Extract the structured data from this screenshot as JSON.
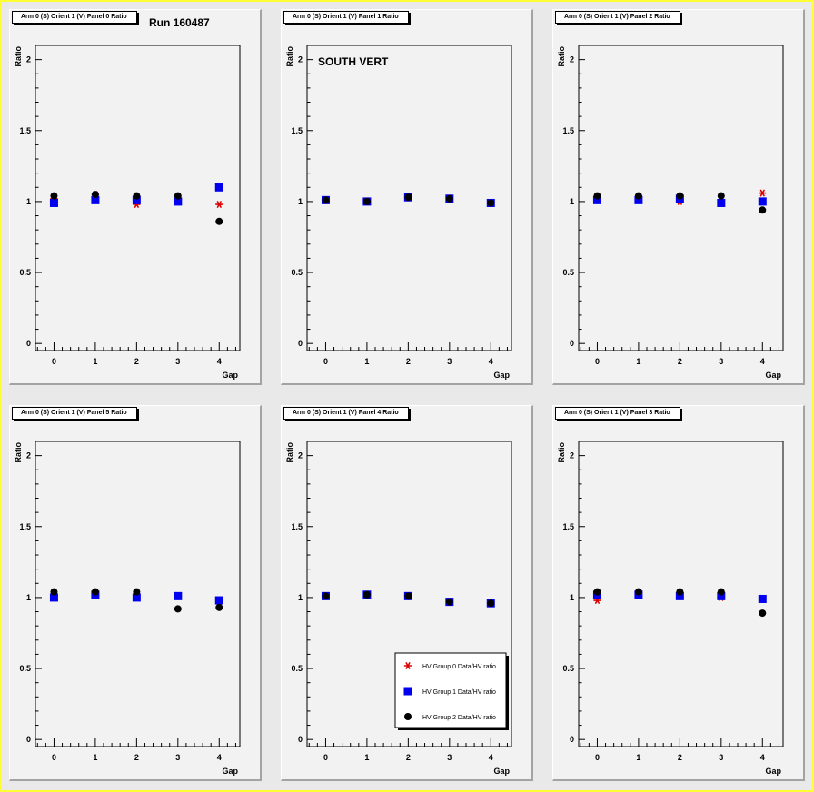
{
  "chart_data": [
    {
      "type": "scatter",
      "title": "Arm 0 (S) Orient 1 (V) Panel 0 Ratio",
      "annotation": "Run 160487",
      "xlabel": "Gap",
      "ylabel": "Ratio",
      "xlim": [
        -0.45,
        4.5
      ],
      "ylim": [
        -0.05,
        2.1
      ],
      "x_ticks": [
        "0",
        "1",
        "2",
        "3",
        "4"
      ],
      "y_ticks": [
        "0",
        "0.5",
        "1",
        "1.5",
        "2"
      ],
      "x": [
        0,
        1,
        2,
        3,
        4
      ],
      "series": [
        {
          "values": [
            1.02,
            1.05,
            0.98,
            1.01,
            0.98
          ],
          "color": "#dd0000",
          "marker": "star"
        },
        {
          "values": [
            0.99,
            1.01,
            1.01,
            1.0,
            1.1
          ],
          "color": "#0000ee",
          "marker": "square"
        },
        {
          "values": [
            1.04,
            1.05,
            1.04,
            1.04,
            0.86
          ],
          "color": "#000000",
          "marker": "circle"
        }
      ]
    },
    {
      "type": "scatter",
      "title": "Arm 0 (S) Orient 1 (V) Panel 1 Ratio",
      "annotation": "SOUTH VERT",
      "xlabel": "Gap",
      "ylabel": "Ratio",
      "xlim": [
        -0.45,
        4.5
      ],
      "ylim": [
        -0.05,
        2.1
      ],
      "x_ticks": [
        "0",
        "1",
        "2",
        "3",
        "4"
      ],
      "y_ticks": [
        "0",
        "0.5",
        "1",
        "1.5",
        "2"
      ],
      "x": [
        0,
        1,
        2,
        3,
        4
      ],
      "series": [
        {
          "values": [
            1.01,
            1.0,
            1.03,
            1.02,
            0.99
          ],
          "color": "#dd0000",
          "marker": "star"
        },
        {
          "values": [
            1.01,
            1.0,
            1.03,
            1.02,
            0.99
          ],
          "color": "#0000ee",
          "marker": "square"
        },
        {
          "values": [
            1.01,
            1.0,
            1.03,
            1.02,
            0.99
          ],
          "color": "#000000",
          "marker": "circle"
        }
      ]
    },
    {
      "type": "scatter",
      "title": "Arm 0 (S) Orient 1 (V) Panel 2 Ratio",
      "xlabel": "Gap",
      "ylabel": "Ratio",
      "xlim": [
        -0.45,
        4.5
      ],
      "ylim": [
        -0.05,
        2.1
      ],
      "x_ticks": [
        "0",
        "1",
        "2",
        "3",
        "4"
      ],
      "y_ticks": [
        "0",
        "0.5",
        "1",
        "1.5",
        "2"
      ],
      "x": [
        0,
        1,
        2,
        3,
        4
      ],
      "series": [
        {
          "values": [
            1.01,
            1.02,
            1.0,
            1.0,
            1.06
          ],
          "color": "#dd0000",
          "marker": "star"
        },
        {
          "values": [
            1.01,
            1.01,
            1.02,
            0.99,
            1.0
          ],
          "color": "#0000ee",
          "marker": "square"
        },
        {
          "values": [
            1.04,
            1.04,
            1.04,
            1.04,
            0.94
          ],
          "color": "#000000",
          "marker": "circle"
        }
      ]
    },
    {
      "type": "scatter",
      "title": "Arm 0 (S) Orient 1 (V) Panel 5 Ratio",
      "xlabel": "Gap",
      "ylabel": "Ratio",
      "xlim": [
        -0.45,
        4.5
      ],
      "ylim": [
        -0.05,
        2.1
      ],
      "x_ticks": [
        "0",
        "1",
        "2",
        "3",
        "4"
      ],
      "y_ticks": [
        "0",
        "0.5",
        "1",
        "1.5",
        "2"
      ],
      "x": [
        0,
        1,
        2,
        3,
        4
      ],
      "series": [
        {
          "values": [
            1.02,
            1.02,
            1.0,
            1.01,
            0.97
          ],
          "color": "#dd0000",
          "marker": "star"
        },
        {
          "values": [
            1.0,
            1.02,
            1.0,
            1.01,
            0.98
          ],
          "color": "#0000ee",
          "marker": "square"
        },
        {
          "values": [
            1.04,
            1.04,
            1.04,
            0.92,
            0.93
          ],
          "color": "#000000",
          "marker": "circle"
        }
      ]
    },
    {
      "type": "scatter",
      "title": "Arm 0 (S) Orient 1 (V) Panel 4 Ratio",
      "xlabel": "Gap",
      "ylabel": "Ratio",
      "xlim": [
        -0.45,
        4.5
      ],
      "ylim": [
        -0.05,
        2.1
      ],
      "x_ticks": [
        "0",
        "1",
        "2",
        "3",
        "4"
      ],
      "y_ticks": [
        "0",
        "0.5",
        "1",
        "1.5",
        "2"
      ],
      "x": [
        0,
        1,
        2,
        3,
        4
      ],
      "legend": {
        "placement": "bottom-right",
        "entries": [
          {
            "label": "HV Group 0 Data/HV ratio",
            "color": "#dd0000",
            "marker": "star"
          },
          {
            "label": "HV Group 1 Data/HV ratio",
            "color": "#0000ee",
            "marker": "square"
          },
          {
            "label": "HV Group 2 Data/HV ratio",
            "color": "#000000",
            "marker": "circle"
          }
        ]
      },
      "series": [
        {
          "values": [
            1.01,
            1.02,
            1.01,
            0.97,
            0.96
          ],
          "color": "#dd0000",
          "marker": "star"
        },
        {
          "values": [
            1.01,
            1.02,
            1.01,
            0.97,
            0.96
          ],
          "color": "#0000ee",
          "marker": "square"
        },
        {
          "values": [
            1.01,
            1.02,
            1.01,
            0.97,
            0.96
          ],
          "color": "#000000",
          "marker": "circle"
        }
      ]
    },
    {
      "type": "scatter",
      "title": "Arm 0 (S) Orient 1 (V) Panel 3 Ratio",
      "xlabel": "Gap",
      "ylabel": "Ratio",
      "xlim": [
        -0.45,
        4.5
      ],
      "ylim": [
        -0.05,
        2.1
      ],
      "x_ticks": [
        "0",
        "1",
        "2",
        "3",
        "4"
      ],
      "y_ticks": [
        "0",
        "0.5",
        "1",
        "1.5",
        "2"
      ],
      "x": [
        0,
        1,
        2,
        3,
        4
      ],
      "series": [
        {
          "values": [
            0.98,
            1.02,
            1.01,
            1.0,
            0.99
          ],
          "color": "#dd0000",
          "marker": "star"
        },
        {
          "values": [
            1.02,
            1.02,
            1.01,
            1.01,
            0.99
          ],
          "color": "#0000ee",
          "marker": "square"
        },
        {
          "values": [
            1.04,
            1.04,
            1.04,
            1.04,
            0.89
          ],
          "color": "#000000",
          "marker": "circle"
        }
      ]
    }
  ]
}
